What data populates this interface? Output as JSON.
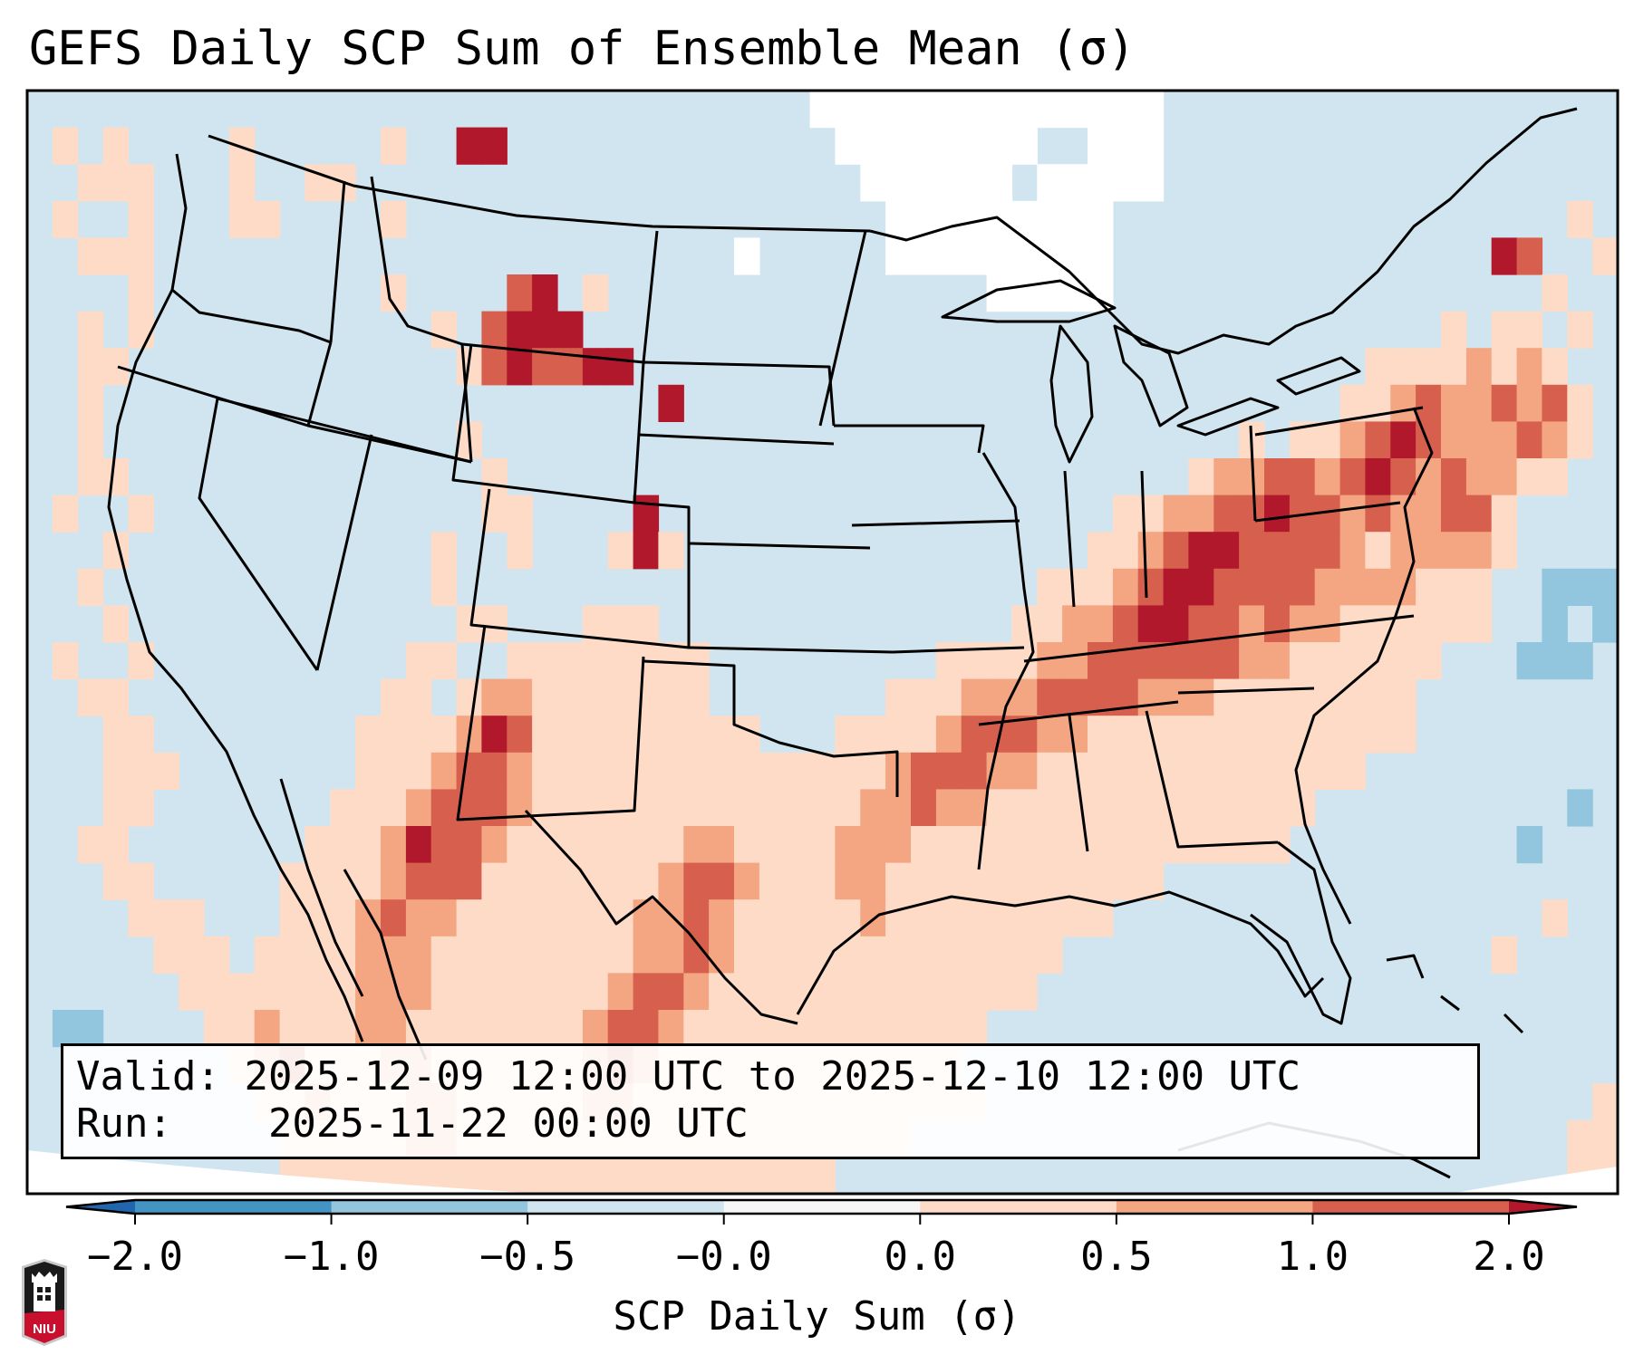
{
  "title": "GEFS Daily SCP Sum of Ensemble Mean (σ)",
  "info_box": {
    "valid_label": "Valid:",
    "valid_value": "2025-12-09 12:00 UTC to 2025-12-10 12:00 UTC",
    "run_label": "Run:",
    "run_value": "2025-11-22 00:00 UTC"
  },
  "logo": {
    "text": "NIU",
    "icon": "niu-shield-logo-icon"
  },
  "chart_data": {
    "type": "heatmap",
    "title": "GEFS Daily SCP Sum of Ensemble Mean (σ)",
    "region": "Continental United States, southern Canada, northern Mexico",
    "colorbar": {
      "label": "SCP Daily Sum (σ)",
      "orientation": "horizontal",
      "extend": "both",
      "ticks": [
        "-2.0",
        "-1.0",
        "-0.5",
        "-0.0",
        "0.0",
        "0.5",
        "1.0",
        "2.0"
      ],
      "bins": [
        {
          "range": "< -2.0",
          "color": "#2166ac"
        },
        {
          "range": "-2.0 to -1.0",
          "color": "#4393c3"
        },
        {
          "range": "-1.0 to -0.5",
          "color": "#92c5de"
        },
        {
          "range": "-0.5 to -0.0",
          "color": "#d1e5f0"
        },
        {
          "range": "-0.0 to 0.0",
          "color": "#f7f7f7"
        },
        {
          "range": "0.0 to 0.5",
          "color": "#fddbc7"
        },
        {
          "range": "0.5 to 1.0",
          "color": "#f4a582"
        },
        {
          "range": "1.0 to 2.0",
          "color": "#d6604d"
        },
        {
          "range": "> 2.0",
          "color": "#b2182b"
        }
      ]
    },
    "grid_legend": "cell codes: 0=no data/white, 1=-2..-1, 2=-1..-0.5, 3=-0.5..0, 4=0..0.5, 5=0.5..1, 6=1..2, 7=>2",
    "grid_rows": [
      "333333333333333333333333333333300000000000000333333333333333333",
      "343433334333334337733333333333330000000033000333333333333333333",
      "334443334334433333333333333333333000000300000333333333333333333",
      "343343334433334333333333333333333300000000033333333333333333343",
      "334443333333333333333333333303333300000000033333333333333376334",
      "333343333333334333367343333333333333330000033333333333333333433",
      "334343333333333343677733333333333333333333333333333333334344343",
      "334433333333333334676677333333333333333333333333333334444545433",
      "334333333333333333333333373333333333333333333333333344565565643",
      "334333333333333334333333333333333333333333333333434456765556543",
      "334433333333333333433333333333333333333333333345566567656554433",
      "343343333333333333443333733333333333333333344556676656556643333",
      "333433333333333343343334743333333333333333445677666654555543333",
      "334333333333333343333333333333333333333344456776666555544433222",
      "333433333333333334433344433333333333333445567766565544444433232",
      "343343333333333443344444444333333333444455666666554444443332223",
      "334433333333334434554444444333333344455566665554444444433333333",
      "333443333333344445764444444443334444566655444444444444433333333",
      "333444333333344456654444444444444456665544444444444443333333333",
      "333443333333444566654444444444444556554444444444444333333333323",
      "334433333334445766544444445544445554444444444444443333333332333",
      "333443333344445666444444456654445544444444444333333333333333333",
      "333344433344456554444444556544444544444444433333333333333333433",
      "333334443444455544444444556544444444444443333333333333333343333",
      "333333444444455544444445665444444444444433333333333333333333333",
      "322333344544455444444456654444444444443333333333333333333333333",
      "333333334564445544444456544444444444433333333333333333333333333",
      "333333333445444554444455444444444444443333333333333333333333334",
      "333333333344444554444444444444444443333333333333333333333333344",
      "333333333344444444444444444444443333333333333333333333333333344"
    ]
  }
}
